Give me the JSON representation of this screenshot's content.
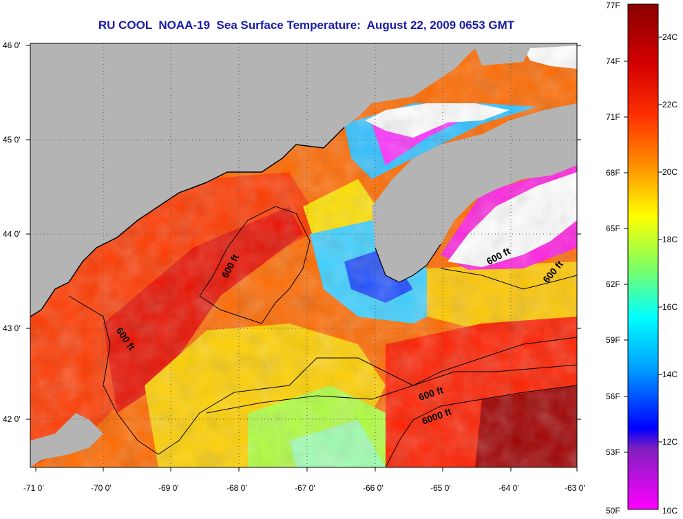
{
  "title": "RU COOL  NOAA-19  Sea Surface Temperature:  August 22, 2009 0653 GMT",
  "lat_labels": [
    "46 0'",
    "45 0'",
    "44 0'",
    "43 0'",
    "42 0'"
  ],
  "lon_labels": [
    "-71 0'",
    "-70 0'",
    "-69 0'",
    "-68 0'",
    "-67 0'",
    "-66 0'",
    "-65 0'",
    "-64 0'",
    "-63 0'"
  ],
  "contour_labels": [
    "600 ft",
    "600 ft",
    "600 ft",
    "600 ft",
    "600 ft",
    "6000 ft"
  ],
  "colorbar": {
    "fahrenheit": [
      "77F",
      "74F",
      "71F",
      "68F",
      "65F",
      "62F",
      "59F",
      "56F",
      "53F",
      "50F"
    ],
    "celsius": [
      "24C",
      "22C",
      "20C",
      "18C",
      "16C",
      "14C",
      "12C",
      "10C"
    ]
  },
  "colors": {
    "land": "#b4b4b4",
    "title": "#1a1aa8",
    "cloud": "#ffffff"
  }
}
